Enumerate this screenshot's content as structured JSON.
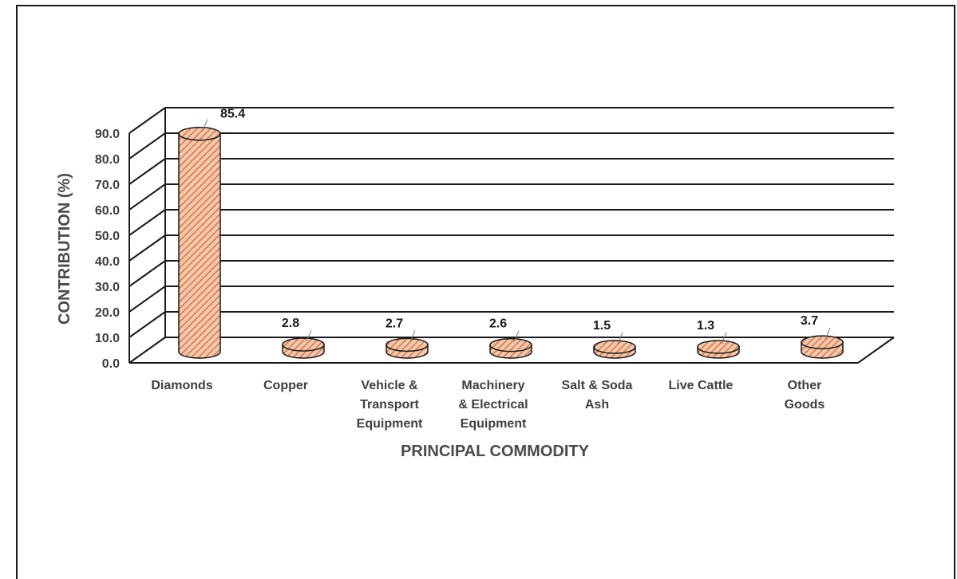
{
  "chart_data": {
    "type": "bar",
    "title": "",
    "xlabel": "PRINCIPAL COMMODITY",
    "ylabel": "CONTRIBUTION (%)",
    "ylim": [
      0,
      90
    ],
    "yticks": [
      "0.0",
      "10.0",
      "20.0",
      "30.0",
      "40.0",
      "50.0",
      "60.0",
      "70.0",
      "80.0",
      "90.0"
    ],
    "categories": [
      [
        "Diamonds"
      ],
      [
        "Copper"
      ],
      [
        "Vehicle &",
        "Transport",
        "Equipment"
      ],
      [
        "Machinery",
        "& Electrical",
        "Equipment"
      ],
      [
        "Salt & Soda",
        "Ash"
      ],
      [
        "Live Cattle"
      ],
      [
        "Other",
        "Goods"
      ]
    ],
    "values": [
      85.4,
      2.8,
      2.7,
      2.6,
      1.5,
      1.3,
      3.7
    ],
    "value_labels": [
      "85.4",
      "2.8",
      "2.7",
      "2.6",
      "1.5",
      "1.3",
      "3.7"
    ],
    "bar_style": "3d-cylinder",
    "bar_color": "#e8a17c",
    "hatch_color": "#d9621f",
    "grid": true,
    "legend": "none"
  }
}
